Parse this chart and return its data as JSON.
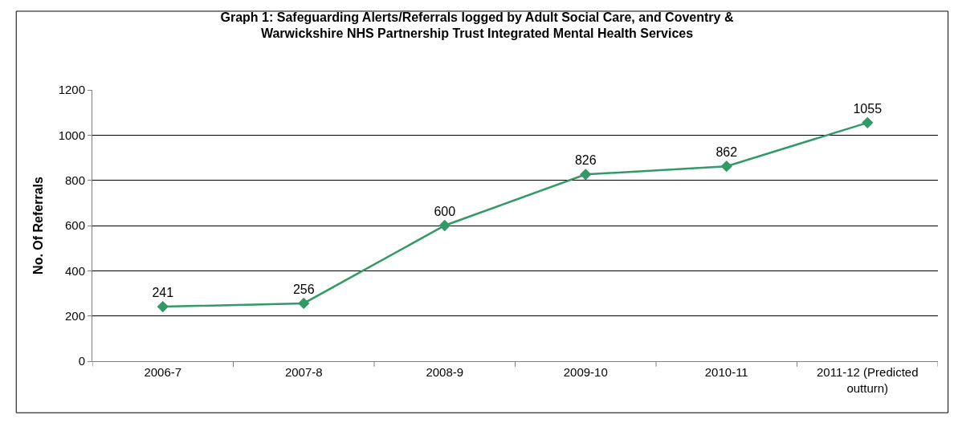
{
  "chart_data": {
    "type": "line",
    "title": "Graph 1: Safeguarding Alerts/Referrals logged by Adult Social Care, and Coventry &\nWarwickshire NHS Partnership Trust Integrated Mental Health Services",
    "ylabel": "No. Of Referrals",
    "categories": [
      "2006-7",
      "2007-8",
      "2008-9",
      "2009-10",
      "2010-11",
      "2011-12 (Predicted\noutturn)"
    ],
    "series": [
      {
        "color": "#339966",
        "values": [
          241,
          256,
          600,
          826,
          862,
          1055
        ]
      }
    ],
    "ylim": [
      0,
      1200
    ],
    "yticks": [
      0,
      200,
      400,
      600,
      800,
      1000,
      1200
    ],
    "grid": "y",
    "marker": "diamond",
    "line_style": "solid",
    "data_labels": true
  }
}
